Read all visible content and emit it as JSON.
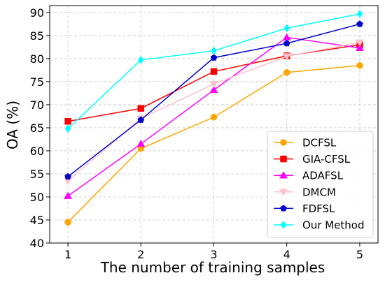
{
  "chart_data": {
    "type": "line",
    "xlabel": "The number of training samples",
    "ylabel": "OA (%)",
    "x": [
      1,
      2,
      3,
      4,
      5
    ],
    "xlim": [
      0.75,
      5.25
    ],
    "ylim": [
      40,
      91.5
    ],
    "xticks": [
      1,
      2,
      3,
      4,
      5
    ],
    "yticks": [
      40,
      45,
      50,
      55,
      60,
      65,
      70,
      75,
      80,
      85,
      90
    ],
    "grid": true,
    "legend_position": "bottom-right",
    "series": [
      {
        "name": "DCFSL",
        "color": "#ffa500",
        "marker": "circle",
        "values": [
          44.5,
          60.5,
          67.3,
          77.0,
          78.5
        ]
      },
      {
        "name": "GIA-CFSL",
        "color": "#ff0000",
        "marker": "square",
        "values": [
          66.4,
          69.2,
          77.2,
          80.6,
          83.0
        ]
      },
      {
        "name": "ADAFSL",
        "color": "#ff00ff",
        "marker": "triangle-up",
        "values": [
          50.2,
          61.5,
          73.2,
          84.6,
          82.3
        ]
      },
      {
        "name": "DMCM",
        "color": "#ffc0cb",
        "marker": "triangle-down",
        "values": [
          53.5,
          67.0,
          74.5,
          80.5,
          83.5
        ]
      },
      {
        "name": "FDFSL",
        "color": "#0000cd",
        "marker": "pentagon",
        "values": [
          54.4,
          66.7,
          80.2,
          83.3,
          87.5
        ]
      },
      {
        "name": "Our Method",
        "color": "#00ffff",
        "marker": "diamond",
        "values": [
          64.8,
          79.7,
          81.7,
          86.6,
          89.7
        ]
      }
    ]
  }
}
